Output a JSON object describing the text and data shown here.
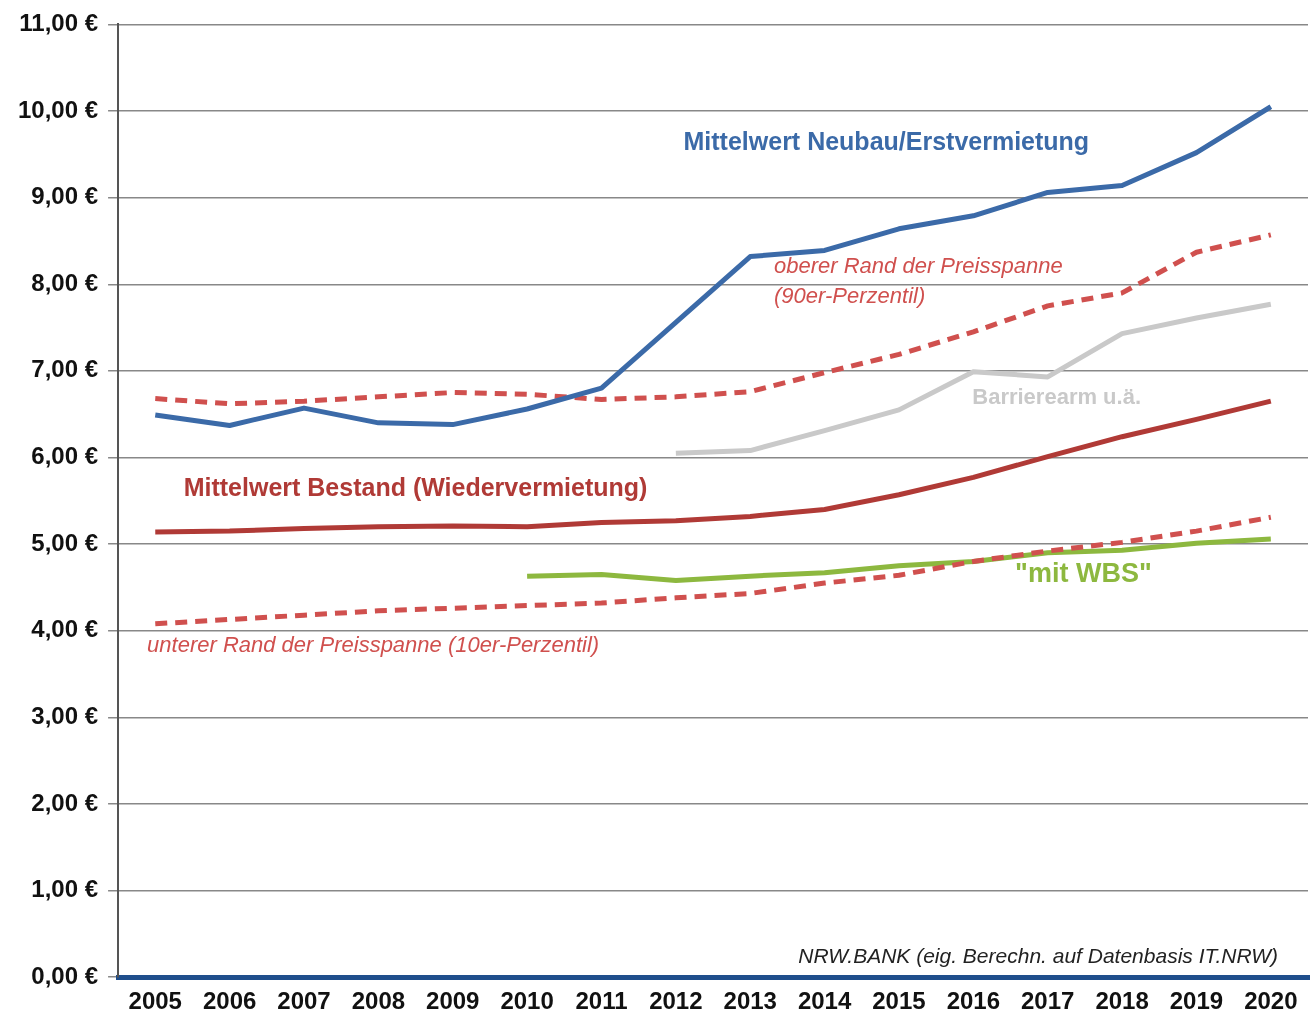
{
  "chart_data": {
    "type": "line",
    "categories": [
      "2005",
      "2006",
      "2007",
      "2008",
      "2009",
      "2010",
      "2011",
      "2012",
      "2013",
      "2014",
      "2015",
      "2016",
      "2017",
      "2018",
      "2019",
      "2020"
    ],
    "series": [
      {
        "name": "Mittelwert Neubau/Erstvermietung",
        "color": "#3b6aa8",
        "values": [
          6.49,
          6.37,
          6.57,
          6.4,
          6.38,
          6.56,
          6.8,
          7.56,
          8.32,
          8.39,
          8.64,
          8.79,
          9.06,
          9.14,
          9.52,
          10.05
        ]
      },
      {
        "name": "oberer Rand der Preisspanne (90er-Perzentil)",
        "color": "#d0504e",
        "line_style": "dashed",
        "values": [
          6.68,
          6.62,
          6.65,
          6.7,
          6.75,
          6.73,
          6.67,
          6.7,
          6.76,
          6.98,
          7.19,
          7.45,
          7.75,
          7.9,
          8.37,
          8.57
        ]
      },
      {
        "name": "Barrierearm u.ä.",
        "color": "#c9c9c9",
        "values": [
          null,
          null,
          null,
          null,
          null,
          null,
          null,
          6.05,
          6.08,
          6.31,
          6.55,
          6.99,
          6.93,
          7.43,
          7.61,
          7.77
        ]
      },
      {
        "name": "Mittelwert Bestand (Wiedervermietung)",
        "color": "#b03a36",
        "values": [
          5.14,
          5.15,
          5.18,
          5.2,
          5.21,
          5.2,
          5.25,
          5.27,
          5.32,
          5.4,
          5.57,
          5.77,
          6.01,
          6.24,
          6.44,
          6.65
        ]
      },
      {
        "name": "unterer Rand der Preisspanne (10er-Perzentil)",
        "color": "#d0504e",
        "line_style": "dashed",
        "values": [
          4.08,
          4.13,
          4.18,
          4.23,
          4.26,
          4.29,
          4.32,
          4.38,
          4.43,
          4.55,
          4.64,
          4.8,
          4.92,
          5.02,
          5.15,
          5.31
        ]
      },
      {
        "name": "\"mit WBS\"",
        "color": "#8db83f",
        "values": [
          null,
          null,
          null,
          null,
          null,
          4.63,
          4.65,
          4.58,
          4.63,
          4.67,
          4.75,
          4.8,
          4.9,
          4.93,
          5.01,
          5.06
        ]
      }
    ],
    "ylim": [
      0,
      11
    ],
    "yticks": [
      {
        "value": 0,
        "label": "0,00 €"
      },
      {
        "value": 1,
        "label": "1,00 €"
      },
      {
        "value": 2,
        "label": "2,00 €"
      },
      {
        "value": 3,
        "label": "3,00 €"
      },
      {
        "value": 4,
        "label": "4,00 €"
      },
      {
        "value": 5,
        "label": "5,00 €"
      },
      {
        "value": 6,
        "label": "6,00 €"
      },
      {
        "value": 7,
        "label": "7,00 €"
      },
      {
        "value": 8,
        "label": "8,00 €"
      },
      {
        "value": 9,
        "label": "9,00 €"
      },
      {
        "value": 10,
        "label": "10,00 €"
      },
      {
        "value": 11,
        "label": "11,00 €"
      }
    ],
    "grid": "y",
    "legend": false,
    "marker": "none",
    "annotations": [
      "NRW.BANK (eig. Berechn. auf Datenbasis IT.NRW)"
    ]
  }
}
